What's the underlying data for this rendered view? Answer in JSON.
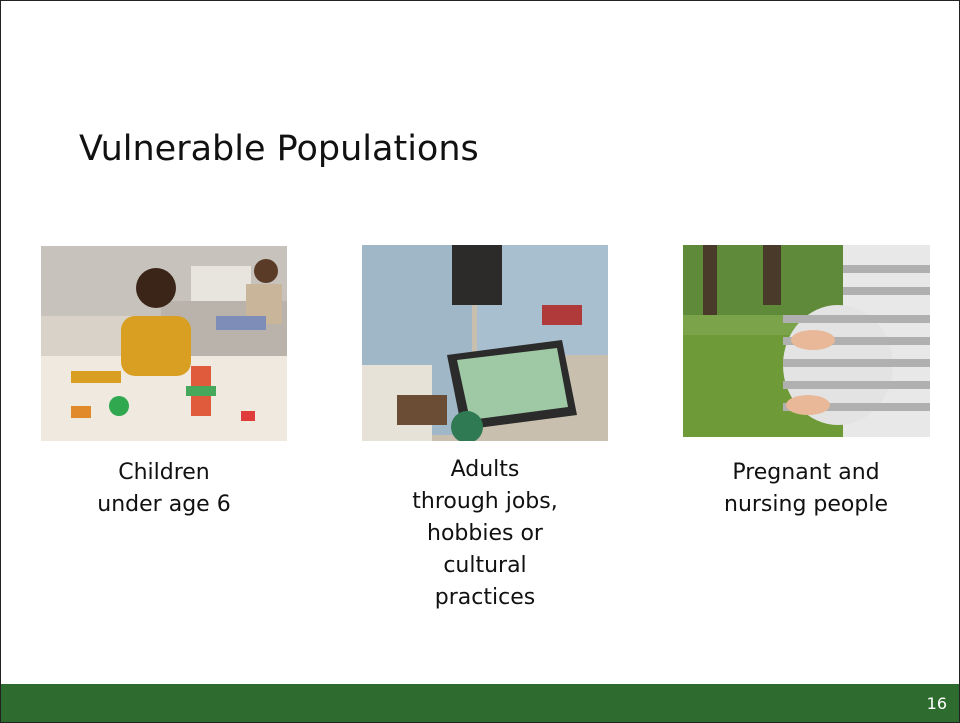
{
  "slide": {
    "title": "Vulnerable Populations",
    "items": [
      {
        "caption": [
          "Children",
          "under age 6"
        ]
      },
      {
        "caption": [
          "Adults",
          "through jobs,",
          "hobbies or",
          "cultural",
          "practices"
        ]
      },
      {
        "caption": [
          "Pregnant and",
          "nursing people"
        ]
      }
    ],
    "page_number": "16"
  }
}
